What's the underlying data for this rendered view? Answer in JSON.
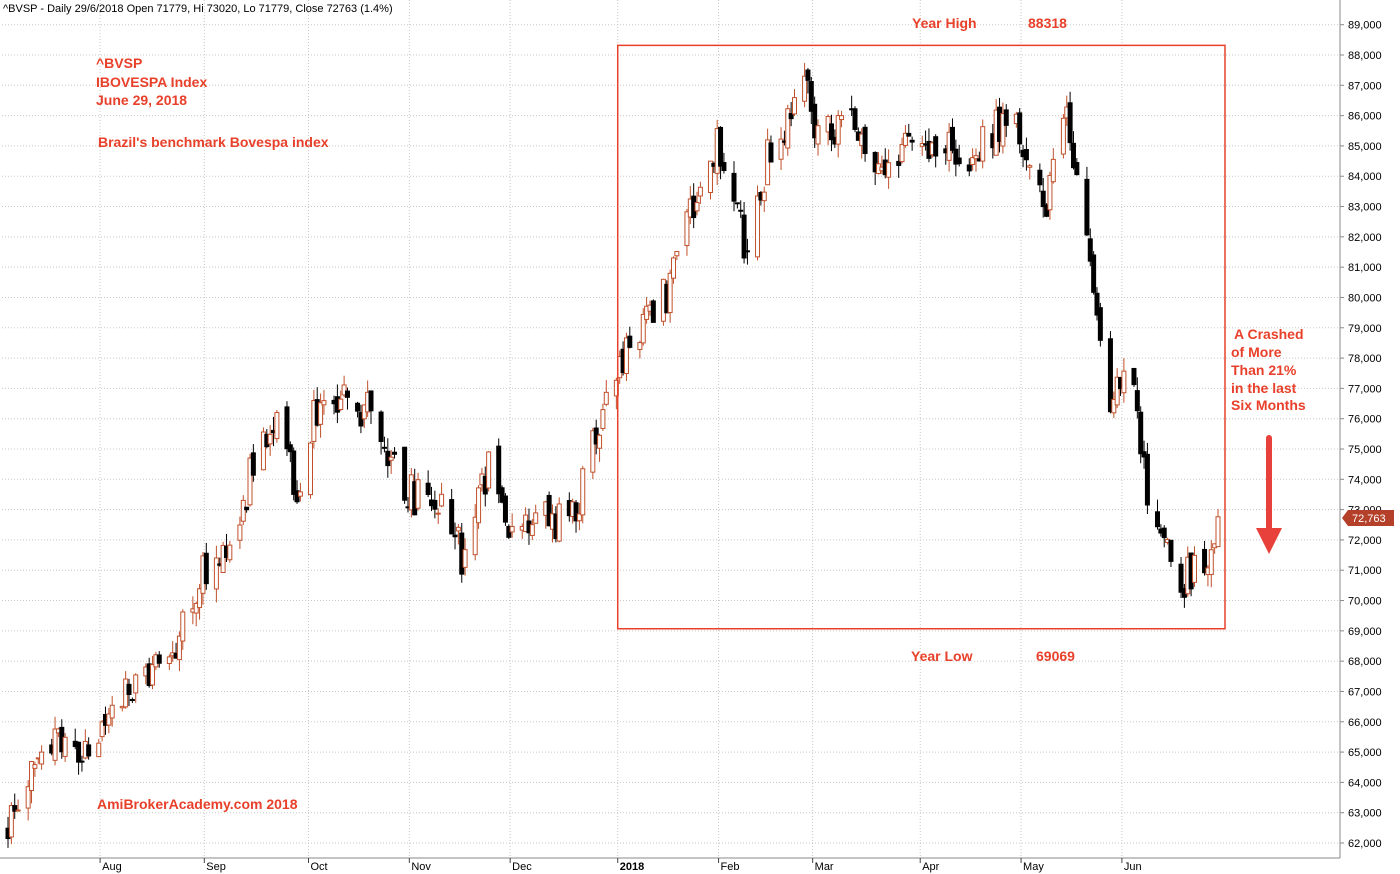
{
  "header": "^BVSP - Daily 29/6/2018 Open 71779, Hi 73020, Lo 71779, Close 72763 (1.4%)",
  "annotations": {
    "symbol": "^BVSP",
    "name": "IBOVESPA Index",
    "date": "June 29, 2018",
    "description": "Brazil's benchmark Bovespa index",
    "year_high_label": "Year High",
    "year_high_value": "88318",
    "year_low_label": "Year Low",
    "year_low_value": "69069",
    "crash_lines": [
      "A Crashed",
      "of More",
      "Than 21%",
      "in the last",
      "Six Months"
    ],
    "watermark": "AmiBrokerAcademy.com  2018"
  },
  "last_price_label": "72,763",
  "colors": {
    "up_candle": "#c0502a",
    "down_candle": "#000000",
    "annotation": "#e8402a",
    "box": "#e8402a",
    "grid": "#c8c8c8",
    "last_price_bg": "#b5402a"
  },
  "chart_data": {
    "type": "candlestick",
    "symbol": "^BVSP",
    "interval": "Daily",
    "x_range": [
      "2017-07-04",
      "2018-06-29"
    ],
    "ylim": [
      61500,
      89500
    ],
    "y_ticks": [
      62000,
      63000,
      64000,
      65000,
      66000,
      67000,
      68000,
      69000,
      70000,
      71000,
      72000,
      73000,
      74000,
      75000,
      76000,
      77000,
      78000,
      79000,
      80000,
      81000,
      82000,
      83000,
      84000,
      85000,
      86000,
      87000,
      88000,
      89000
    ],
    "y_tick_labels": [
      "62,000",
      "63,000",
      "64,000",
      "65,000",
      "66,000",
      "67,000",
      "68,000",
      "69,000",
      "70,000",
      "71,000",
      "72,000",
      "73,000",
      "74,000",
      "75,000",
      "76,000",
      "77,000",
      "78,000",
      "79,000",
      "80,000",
      "81,000",
      "82,000",
      "83,000",
      "84,000",
      "85,000",
      "86,000",
      "87,000",
      "88,000",
      "89,000"
    ],
    "x_ticks": [
      {
        "label": "Aug",
        "date": "2017-08-01",
        "bold": false
      },
      {
        "label": "Sep",
        "date": "2017-09-01",
        "bold": false
      },
      {
        "label": "Oct",
        "date": "2017-10-02",
        "bold": false
      },
      {
        "label": "Nov",
        "date": "2017-11-01",
        "bold": false
      },
      {
        "label": "Dec",
        "date": "2017-12-01",
        "bold": false
      },
      {
        "label": "2018",
        "date": "2018-01-02",
        "bold": true
      },
      {
        "label": "Feb",
        "date": "2018-02-01",
        "bold": false
      },
      {
        "label": "Mar",
        "date": "2018-03-01",
        "bold": false
      },
      {
        "label": "Apr",
        "date": "2018-04-02",
        "bold": false
      },
      {
        "label": "May",
        "date": "2018-05-02",
        "bold": false
      },
      {
        "label": "Jun",
        "date": "2018-06-01",
        "bold": false
      }
    ],
    "last": {
      "date": "2018-06-29",
      "open": 71779,
      "high": 73020,
      "low": 71779,
      "close": 72763,
      "change_pct": 1.4
    },
    "year_high": 88318,
    "year_low": 69069,
    "highlight_box": {
      "x_start": "2018-01-02",
      "x_end": "2018-06-29",
      "y_low": 69069,
      "y_high": 88318
    },
    "close_path": [
      [
        "2017-07-04",
        62300
      ],
      [
        "2017-07-12",
        64500
      ],
      [
        "2017-07-18",
        65300
      ],
      [
        "2017-07-27",
        65000
      ],
      [
        "2017-08-02",
        66000
      ],
      [
        "2017-08-09",
        67300
      ],
      [
        "2017-08-16",
        67800
      ],
      [
        "2017-08-23",
        68500
      ],
      [
        "2017-08-30",
        70800
      ],
      [
        "2017-09-05",
        71300
      ],
      [
        "2017-09-11",
        72900
      ],
      [
        "2017-09-18",
        75500
      ],
      [
        "2017-09-22",
        75600
      ],
      [
        "2017-09-28",
        73700
      ],
      [
        "2017-10-03",
        76300
      ],
      [
        "2017-10-06",
        76700
      ],
      [
        "2017-10-13",
        76400
      ],
      [
        "2017-10-20",
        76200
      ],
      [
        "2017-10-25",
        74800
      ],
      [
        "2017-10-31",
        73500
      ],
      [
        "2017-11-07",
        73600
      ],
      [
        "2017-11-13",
        72400
      ],
      [
        "2017-11-17",
        71200
      ],
      [
        "2017-11-24",
        74400
      ],
      [
        "2017-11-30",
        71900
      ],
      [
        "2017-12-06",
        72300
      ],
      [
        "2017-12-12",
        72700
      ],
      [
        "2017-12-19",
        72800
      ],
      [
        "2017-12-28",
        76200
      ],
      [
        "2018-01-05",
        78700
      ],
      [
        "2018-01-12",
        79200
      ],
      [
        "2018-01-19",
        80900
      ],
      [
        "2018-01-25",
        83500
      ],
      [
        "2018-01-31",
        84900
      ],
      [
        "2018-02-06",
        83500
      ],
      [
        "2018-02-09",
        81200
      ],
      [
        "2018-02-15",
        84500
      ],
      [
        "2018-02-21",
        85900
      ],
      [
        "2018-02-26",
        87700
      ],
      [
        "2018-03-01",
        85700
      ],
      [
        "2018-03-09",
        85500
      ],
      [
        "2018-03-15",
        85600
      ],
      [
        "2018-03-21",
        84300
      ],
      [
        "2018-03-28",
        84900
      ],
      [
        "2018-04-04",
        85100
      ],
      [
        "2018-04-11",
        84800
      ],
      [
        "2018-04-18",
        84900
      ],
      [
        "2018-04-24",
        85700
      ],
      [
        "2018-04-30",
        86200
      ],
      [
        "2018-05-04",
        83900
      ],
      [
        "2018-05-09",
        82800
      ],
      [
        "2018-05-15",
        86200
      ],
      [
        "2018-05-18",
        83900
      ],
      [
        "2018-05-23",
        80700
      ],
      [
        "2018-05-28",
        76000
      ],
      [
        "2018-06-01",
        77500
      ],
      [
        "2018-06-05",
        76300
      ],
      [
        "2018-06-08",
        73200
      ],
      [
        "2018-06-13",
        72100
      ],
      [
        "2018-06-18",
        70600
      ],
      [
        "2018-06-22",
        71000
      ],
      [
        "2018-06-26",
        71200
      ],
      [
        "2018-06-28",
        71779
      ],
      [
        "2018-06-29",
        72763
      ]
    ]
  }
}
